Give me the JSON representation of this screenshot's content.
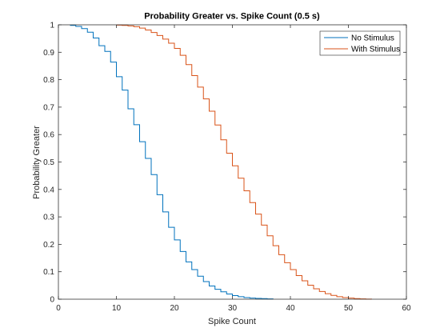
{
  "chart_data": {
    "type": "line",
    "step": true,
    "title": "Probability Greater vs. Spike Count (0.5 s)",
    "xlabel": "Spike Count",
    "ylabel": "Probability Greater",
    "xlim": [
      0,
      60
    ],
    "ylim": [
      0,
      1
    ],
    "xticks": [
      0,
      10,
      20,
      30,
      40,
      50,
      60
    ],
    "yticks": [
      0,
      0.1,
      0.2,
      0.3,
      0.4,
      0.5,
      0.6,
      0.7,
      0.8,
      0.9,
      1
    ],
    "xtick_labels": [
      "0",
      "10",
      "20",
      "30",
      "40",
      "50",
      "60"
    ],
    "ytick_labels": [
      "0",
      "0.1",
      "0.2",
      "0.3",
      "0.4",
      "0.5",
      "0.6",
      "0.7",
      "0.8",
      "0.9",
      "1"
    ],
    "grid": false,
    "legend_position": "top-right",
    "series": [
      {
        "name": "No Stimulus",
        "color": "#0072BD",
        "x": [
          2,
          3,
          4,
          5,
          6,
          7,
          8,
          9,
          10,
          11,
          12,
          13,
          14,
          15,
          16,
          17,
          18,
          19,
          20,
          21,
          22,
          23,
          24,
          25,
          26,
          27,
          28,
          29,
          30,
          31,
          32,
          33,
          34,
          35,
          36,
          37
        ],
        "y": [
          0.998,
          0.994,
          0.986,
          0.973,
          0.952,
          0.924,
          0.903,
          0.864,
          0.811,
          0.762,
          0.694,
          0.636,
          0.574,
          0.513,
          0.454,
          0.381,
          0.318,
          0.262,
          0.216,
          0.174,
          0.136,
          0.108,
          0.084,
          0.064,
          0.048,
          0.036,
          0.027,
          0.019,
          0.013,
          0.009,
          0.006,
          0.004,
          0.003,
          0.002,
          0.001,
          0.0
        ]
      },
      {
        "name": "With Stimulus",
        "color": "#D95319",
        "x": [
          10,
          11,
          12,
          13,
          14,
          15,
          16,
          17,
          18,
          19,
          20,
          21,
          22,
          23,
          24,
          25,
          26,
          27,
          28,
          29,
          30,
          31,
          32,
          33,
          34,
          35,
          36,
          37,
          38,
          39,
          40,
          41,
          42,
          43,
          44,
          45,
          46,
          47,
          48,
          49,
          50,
          51,
          52,
          53,
          54
        ],
        "y": [
          0.999,
          0.998,
          0.996,
          0.993,
          0.988,
          0.981,
          0.972,
          0.961,
          0.948,
          0.933,
          0.914,
          0.889,
          0.855,
          0.815,
          0.773,
          0.73,
          0.685,
          0.635,
          0.581,
          0.532,
          0.486,
          0.441,
          0.395,
          0.352,
          0.31,
          0.27,
          0.231,
          0.195,
          0.162,
          0.133,
          0.108,
          0.086,
          0.067,
          0.051,
          0.038,
          0.028,
          0.02,
          0.014,
          0.009,
          0.006,
          0.004,
          0.002,
          0.001,
          0.0005,
          0.0
        ]
      }
    ]
  }
}
